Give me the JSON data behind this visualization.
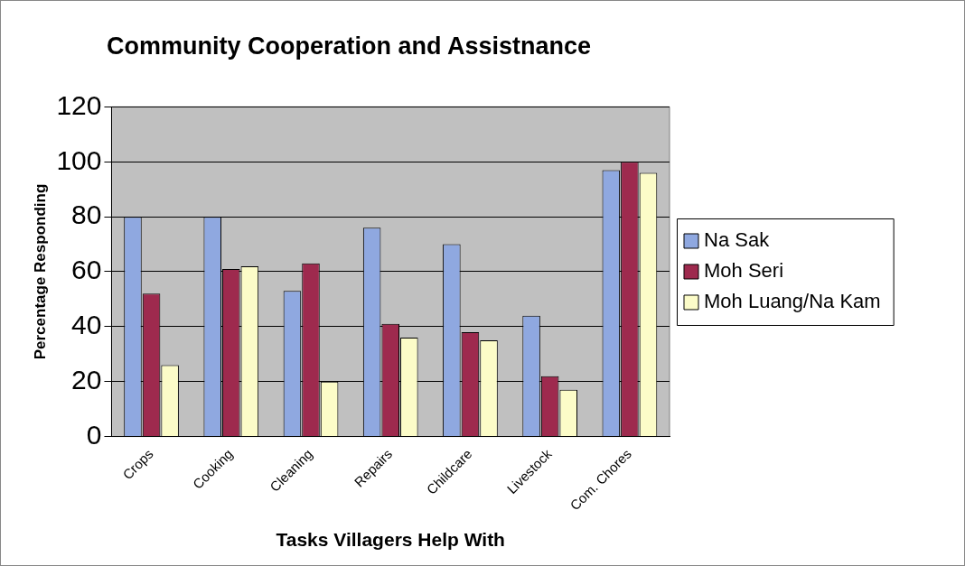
{
  "chart_data": {
    "type": "bar",
    "title": "Community Cooperation and Assistnance",
    "xlabel": "Tasks Villagers Help With",
    "ylabel": "Percentage Responding",
    "categories": [
      "Crops",
      "Cooking",
      "Cleaning",
      "Repairs",
      "Childcare",
      "Livestock",
      "Com. Chores"
    ],
    "series": [
      {
        "name": "Na Sak",
        "color": "#8fa8e0",
        "values": [
          80,
          80,
          53,
          76,
          70,
          44,
          97
        ]
      },
      {
        "name": "Moh Seri",
        "color": "#9e2a4e",
        "values": [
          52,
          61,
          63,
          41,
          38,
          22,
          100
        ]
      },
      {
        "name": "Moh Luang/Na Kam",
        "color": "#fcfcc8",
        "values": [
          26,
          62,
          20,
          36,
          35,
          17,
          96
        ]
      }
    ],
    "ylim": [
      0,
      120
    ],
    "yticks": [
      0,
      20,
      40,
      60,
      80,
      100,
      120
    ],
    "grid": "y",
    "legend": "right"
  }
}
